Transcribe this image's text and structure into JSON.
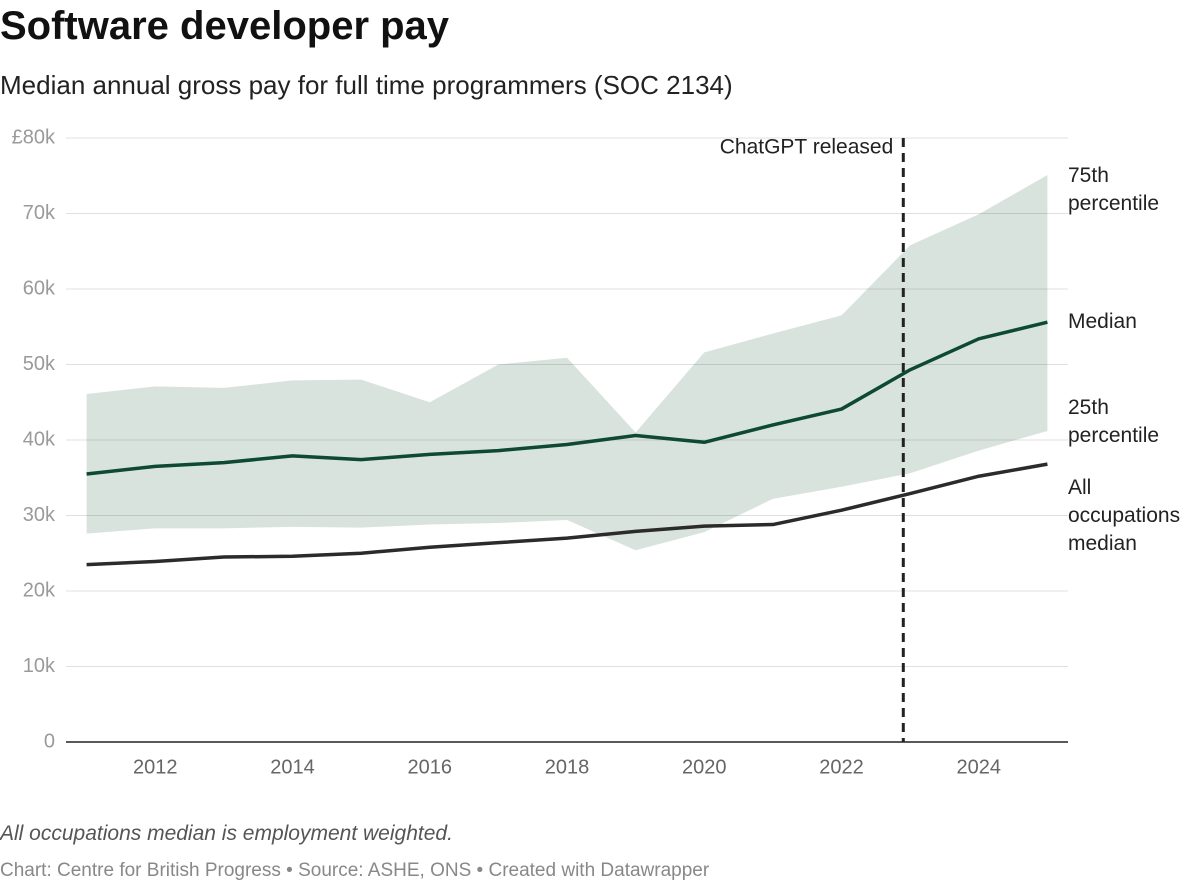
{
  "chart_data": {
    "type": "line",
    "title": "Software developer pay",
    "subtitle": "Median annual gross pay for full time programmers (SOC 2134)",
    "note": "All occupations median is employment weighted.",
    "source": "Chart: Centre for British Progress • Source: ASHE, ONS • Created with Datawrapper",
    "x": [
      2011,
      2012,
      2013,
      2014,
      2015,
      2016,
      2017,
      2018,
      2019,
      2020,
      2021,
      2022,
      2023,
      2024,
      2025
    ],
    "band": {
      "upper": {
        "name": "75th percentile",
        "values": [
          46100,
          47100,
          46900,
          47900,
          48000,
          45000,
          50000,
          50900,
          41000,
          51600,
          54100,
          56500,
          65800,
          69900,
          75100
        ]
      },
      "lower": {
        "name": "25th percentile",
        "values": [
          27600,
          28300,
          28300,
          28500,
          28400,
          28800,
          29000,
          29400,
          25400,
          27800,
          32200,
          33800,
          35600,
          38600,
          41200
        ]
      },
      "color": "#d9e3de"
    },
    "series": [
      {
        "name": "Median",
        "color": "#0d4a31",
        "values": [
          35500,
          36500,
          37000,
          37900,
          37400,
          38100,
          38600,
          39400,
          40600,
          39700,
          42000,
          44100,
          49300,
          53400,
          55600
        ]
      },
      {
        "name": "All occupations median",
        "color": "#2b2b2b",
        "values": [
          23500,
          23900,
          24500,
          24600,
          25000,
          25800,
          26400,
          27000,
          27900,
          28600,
          28800,
          30700,
          32900,
          35200,
          36800
        ]
      }
    ],
    "annotations": [
      {
        "text": "ChatGPT released",
        "x": 2022.9
      }
    ],
    "xlim": [
      2010.7,
      2025.3
    ],
    "xticks": [
      2012,
      2014,
      2016,
      2018,
      2020,
      2022,
      2024
    ],
    "ylim": [
      0,
      80000
    ],
    "yticks": [
      0,
      {
        "value": 10000,
        "label": "10k"
      },
      {
        "value": 20000,
        "label": "20k"
      },
      {
        "value": 30000,
        "label": "30k"
      },
      {
        "value": 40000,
        "label": "40k"
      },
      {
        "value": 50000,
        "label": "50k"
      },
      {
        "value": 60000,
        "label": "60k"
      },
      {
        "value": 70000,
        "label": "70k"
      },
      {
        "value": 80000,
        "label": "£80k"
      }
    ],
    "grid": true
  }
}
